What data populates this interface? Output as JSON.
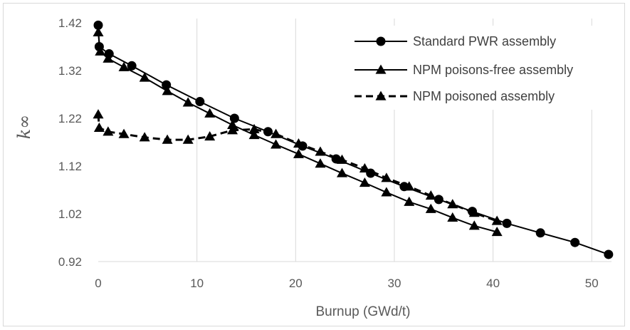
{
  "chart_data": {
    "type": "line",
    "title": "",
    "xlabel": "Burnup (GWd/t)",
    "ylabel": "k∞",
    "xlim": [
      0,
      52
    ],
    "ylim": [
      0.92,
      1.42
    ],
    "x_ticks": [
      "0",
      "10",
      "20",
      "30",
      "40",
      "50"
    ],
    "y_ticks": [
      "0.92",
      "1.02",
      "1.12",
      "1.22",
      "1.32",
      "1.42"
    ],
    "grid": "vertical",
    "legend_position": "top-right",
    "series": [
      {
        "name": "Standard PWR assembly",
        "marker": "circle",
        "line": "solid",
        "color": "#000000",
        "points": [
          [
            0,
            1.415
          ],
          [
            0.1,
            1.37
          ],
          [
            1.1,
            1.355
          ],
          [
            3.4,
            1.33
          ],
          [
            6.9,
            1.29
          ],
          [
            10.3,
            1.255
          ],
          [
            13.8,
            1.22
          ],
          [
            17.2,
            1.192
          ],
          [
            20.7,
            1.162
          ],
          [
            24.1,
            1.135
          ],
          [
            27.6,
            1.105
          ],
          [
            31.0,
            1.077
          ],
          [
            34.5,
            1.05
          ],
          [
            37.9,
            1.025
          ],
          [
            41.4,
            1.0
          ],
          [
            44.8,
            0.98
          ],
          [
            48.3,
            0.96
          ],
          [
            51.7,
            0.935
          ]
        ]
      },
      {
        "name": "NPM poisons-free assembly",
        "marker": "triangle",
        "line": "solid",
        "color": "#000000",
        "points": [
          [
            0,
            1.4
          ],
          [
            0.2,
            1.36
          ],
          [
            1.0,
            1.345
          ],
          [
            2.6,
            1.327
          ],
          [
            4.7,
            1.305
          ],
          [
            7.0,
            1.277
          ],
          [
            9.1,
            1.253
          ],
          [
            11.3,
            1.23
          ],
          [
            13.6,
            1.206
          ],
          [
            15.8,
            1.185
          ],
          [
            18.0,
            1.165
          ],
          [
            20.3,
            1.145
          ],
          [
            22.5,
            1.125
          ],
          [
            24.7,
            1.105
          ],
          [
            27.0,
            1.085
          ],
          [
            29.2,
            1.065
          ],
          [
            31.5,
            1.045
          ],
          [
            33.7,
            1.03
          ],
          [
            35.9,
            1.012
          ],
          [
            38.1,
            0.995
          ],
          [
            40.4,
            0.982
          ]
        ]
      },
      {
        "name": "NPM poisoned assembly",
        "marker": "triangle",
        "line": "dashed",
        "color": "#000000",
        "points": [
          [
            0,
            1.228
          ],
          [
            0.1,
            1.2
          ],
          [
            1.0,
            1.192
          ],
          [
            2.6,
            1.187
          ],
          [
            4.7,
            1.18
          ],
          [
            7.0,
            1.175
          ],
          [
            9.1,
            1.175
          ],
          [
            11.3,
            1.182
          ],
          [
            13.6,
            1.195
          ],
          [
            15.8,
            1.197
          ],
          [
            18.0,
            1.187
          ],
          [
            20.3,
            1.167
          ],
          [
            22.5,
            1.15
          ],
          [
            24.7,
            1.133
          ],
          [
            27.0,
            1.115
          ],
          [
            29.2,
            1.095
          ],
          [
            31.5,
            1.077
          ],
          [
            33.7,
            1.058
          ],
          [
            35.9,
            1.04
          ],
          [
            38.1,
            1.022
          ],
          [
            40.4,
            1.005
          ]
        ]
      }
    ]
  }
}
